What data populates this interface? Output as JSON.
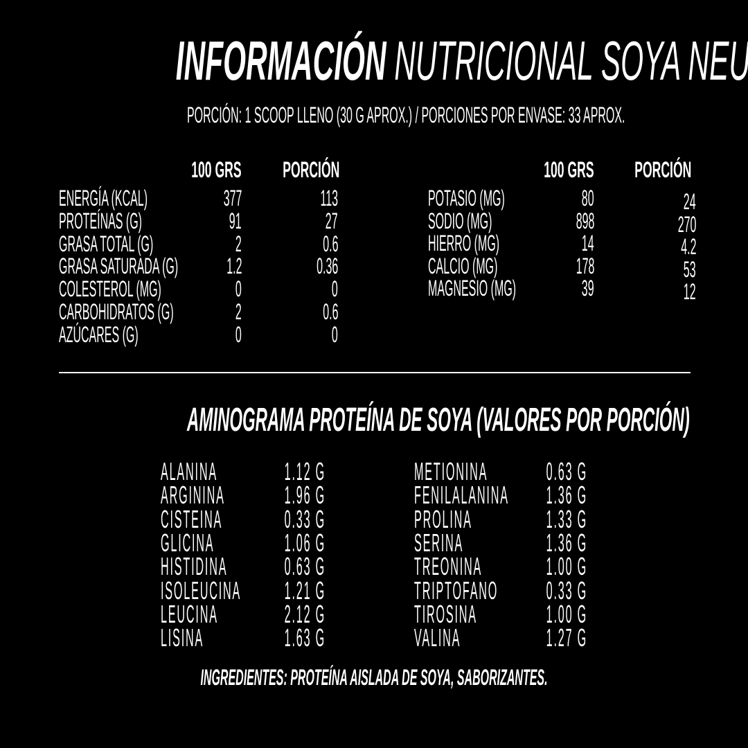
{
  "title": {
    "bold": "INFORMACIÓN",
    "rest": "NUTRICIONAL SOYA NEUTRA"
  },
  "portion_info": "PORCIÓN: 1 SCOOP LLENO (30 G APROX.)  / PORCIONES POR ENVASE: 33 APROX.",
  "nutrition_left": {
    "headers": [
      "100 GRS",
      "PORCIÓN"
    ],
    "rows": [
      {
        "label": "ENERGÍA (KCAL)",
        "per100": "377",
        "portion": "113"
      },
      {
        "label": "PROTEÍNAS (G)",
        "per100": "91",
        "portion": "27"
      },
      {
        "label": "GRASA TOTAL (G)",
        "per100": "2",
        "portion": "0.6"
      },
      {
        "label": "GRASA SATURADA (G)",
        "per100": "1.2",
        "portion": "0.36"
      },
      {
        "label": "COLESTEROL (MG)",
        "per100": "0",
        "portion": "0"
      },
      {
        "label": "CARBOHIDRATOS (G)",
        "per100": "2",
        "portion": "0.6"
      },
      {
        "label": "AZÚCARES (G)",
        "per100": "0",
        "portion": "0"
      }
    ]
  },
  "nutrition_right": {
    "headers": [
      "100 GRS",
      "PORCIÓN"
    ],
    "rows": [
      {
        "label": "POTASIO (MG)",
        "per100": "80",
        "portion": "24"
      },
      {
        "label": "SODIO (MG)",
        "per100": "898",
        "portion": "270"
      },
      {
        "label": "HIERRO (MG)",
        "per100": "14",
        "portion": "4.2"
      },
      {
        "label": "CALCIO (MG)",
        "per100": "178",
        "portion": "53"
      },
      {
        "label": "MAGNESIO (MG)",
        "per100": "39",
        "portion": "12"
      }
    ]
  },
  "aminogram": {
    "title": "AMINOGRAMA PROTEÍNA DE SOYA (VALORES POR PORCIÓN)",
    "left": [
      {
        "name": "ALANINA",
        "value": "1.12 G"
      },
      {
        "name": "ARGININA",
        "value": "1.96 G"
      },
      {
        "name": "CISTEINA",
        "value": "0.33 G"
      },
      {
        "name": "GLICINA",
        "value": "1.06 G"
      },
      {
        "name": "HISTIDINA",
        "value": "0.63 G"
      },
      {
        "name": "ISOLEUCINA",
        "value": "1.21 G"
      },
      {
        "name": "LEUCINA",
        "value": "2.12 G"
      },
      {
        "name": "LISINA",
        "value": "1.63 G"
      }
    ],
    "right": [
      {
        "name": "METIONINA",
        "value": "0.63 G"
      },
      {
        "name": "FENILALANINA",
        "value": "1.36 G"
      },
      {
        "name": "PROLINA",
        "value": "1.33 G"
      },
      {
        "name": "SERINA",
        "value": "1.36 G"
      },
      {
        "name": "TREONINA",
        "value": "1.00 G"
      },
      {
        "name": "TRIPTOFANO",
        "value": "0.33 G"
      },
      {
        "name": "TIROSINA",
        "value": "1.00 G"
      },
      {
        "name": "VALINA",
        "value": "1.27 G"
      }
    ]
  },
  "ingredients": "INGREDIENTES: PROTEÍNA AISLADA DE SOYA, SABORIZANTES.",
  "colors": {
    "background": "#000000",
    "text": "#ffffff"
  }
}
